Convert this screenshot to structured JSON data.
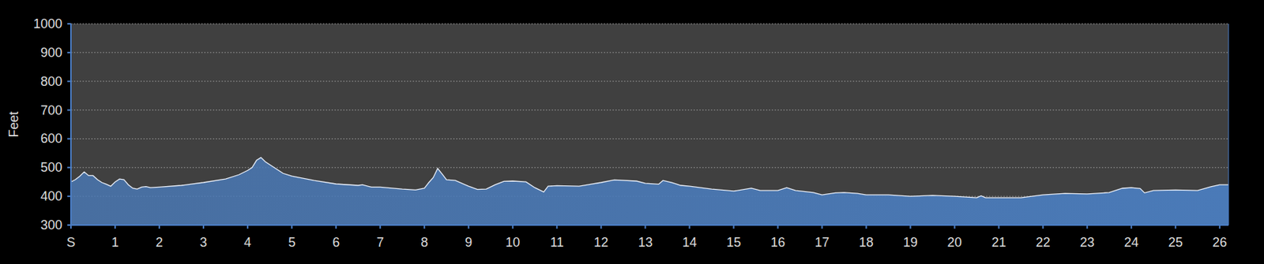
{
  "chart_data": {
    "type": "area",
    "y_label": "Feet",
    "color": "#4a7ab8",
    "grid": true,
    "xlim": [
      0,
      26.2
    ],
    "xticks": [
      {
        "value": 0,
        "label": "S"
      },
      1,
      2,
      3,
      4,
      5,
      6,
      7,
      8,
      9,
      10,
      11,
      12,
      13,
      14,
      15,
      16,
      17,
      18,
      19,
      20,
      21,
      22,
      23,
      24,
      25,
      26
    ],
    "ylim": [
      300,
      1000
    ],
    "yticks": [
      300,
      400,
      500,
      600,
      700,
      800,
      900,
      1000
    ],
    "x": [
      0,
      0.1,
      0.2,
      0.3,
      0.4,
      0.5,
      0.6,
      0.7,
      0.8,
      0.9,
      1.0,
      1.1,
      1.2,
      1.3,
      1.4,
      1.5,
      1.6,
      1.7,
      1.8,
      2.0,
      2.5,
      3.0,
      3.5,
      3.8,
      4.0,
      4.1,
      4.2,
      4.3,
      4.4,
      4.6,
      4.8,
      5.0,
      5.5,
      6.0,
      6.5,
      6.6,
      6.8,
      7.0,
      7.5,
      7.8,
      8.0,
      8.1,
      8.2,
      8.3,
      8.4,
      8.5,
      8.7,
      9.0,
      9.2,
      9.4,
      9.6,
      9.8,
      10.0,
      10.3,
      10.5,
      10.7,
      10.8,
      11.0,
      11.5,
      12.0,
      12.3,
      12.8,
      13.0,
      13.3,
      13.4,
      13.6,
      13.8,
      14.0,
      14.5,
      15.0,
      15.4,
      15.6,
      16.0,
      16.2,
      16.4,
      16.8,
      17.0,
      17.3,
      17.5,
      17.8,
      18.0,
      18.5,
      19.0,
      19.5,
      20.0,
      20.5,
      20.6,
      20.7,
      21.0,
      21.5,
      22.0,
      22.5,
      23.0,
      23.5,
      23.8,
      24.0,
      24.2,
      24.3,
      24.5,
      25.0,
      25.5,
      25.8,
      26.0,
      26.2
    ],
    "values": [
      450,
      458,
      470,
      485,
      472,
      472,
      458,
      448,
      442,
      435,
      450,
      460,
      458,
      440,
      428,
      425,
      432,
      434,
      430,
      432,
      438,
      448,
      460,
      475,
      490,
      500,
      525,
      535,
      520,
      500,
      480,
      470,
      455,
      443,
      438,
      440,
      432,
      432,
      425,
      422,
      428,
      448,
      465,
      497,
      478,
      458,
      455,
      435,
      424,
      425,
      440,
      452,
      453,
      450,
      430,
      415,
      435,
      437,
      435,
      448,
      457,
      453,
      445,
      442,
      455,
      448,
      438,
      435,
      425,
      418,
      428,
      420,
      420,
      430,
      420,
      413,
      405,
      412,
      413,
      410,
      405,
      405,
      400,
      403,
      400,
      395,
      402,
      395,
      395,
      395,
      405,
      410,
      408,
      413,
      428,
      430,
      427,
      412,
      420,
      422,
      420,
      433,
      440,
      440
    ]
  }
}
